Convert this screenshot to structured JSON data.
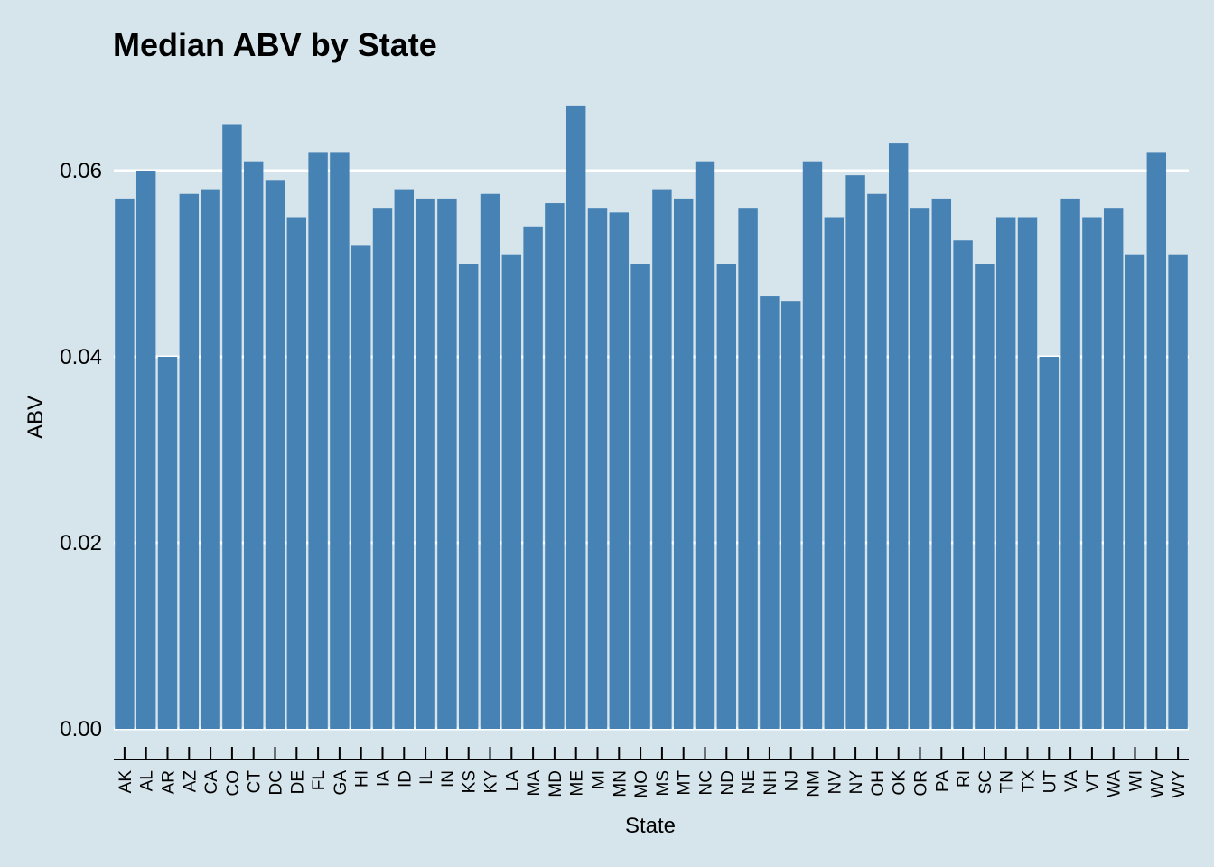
{
  "chart_data": {
    "type": "bar",
    "title": "Median ABV by State",
    "xlabel": "State",
    "ylabel": "ABV",
    "categories": [
      "AK",
      "AL",
      "AR",
      "AZ",
      "CA",
      "CO",
      "CT",
      "DC",
      "DE",
      "FL",
      "GA",
      "HI",
      "IA",
      "ID",
      "IL",
      "IN",
      "KS",
      "KY",
      "LA",
      "MA",
      "MD",
      "ME",
      "MI",
      "MN",
      "MO",
      "MS",
      "MT",
      "NC",
      "ND",
      "NE",
      "NH",
      "NJ",
      "NM",
      "NV",
      "NY",
      "OH",
      "OK",
      "OR",
      "PA",
      "RI",
      "SC",
      "TN",
      "TX",
      "UT",
      "VA",
      "VT",
      "WA",
      "WI",
      "WV",
      "WY"
    ],
    "values": [
      0.057,
      0.06,
      0.04,
      0.0575,
      0.058,
      0.065,
      0.061,
      0.059,
      0.055,
      0.062,
      0.062,
      0.052,
      0.056,
      0.058,
      0.057,
      0.057,
      0.05,
      0.0575,
      0.051,
      0.054,
      0.0565,
      0.067,
      0.056,
      0.0555,
      0.05,
      0.058,
      0.057,
      0.061,
      0.05,
      0.056,
      0.0465,
      0.046,
      0.061,
      0.055,
      0.0595,
      0.0575,
      0.063,
      0.056,
      0.057,
      0.0525,
      0.05,
      0.055,
      0.055,
      0.04,
      0.057,
      0.055,
      0.056,
      0.051,
      0.062,
      0.051
    ],
    "yticks": [
      "0.00",
      "0.02",
      "0.04",
      "0.06"
    ],
    "ylim": [
      0,
      0.07
    ],
    "grid": true,
    "colors": {
      "background": "#d6e4eb",
      "bar": "#4682b4",
      "grid": "#ffffff",
      "axis": "#000000"
    }
  }
}
